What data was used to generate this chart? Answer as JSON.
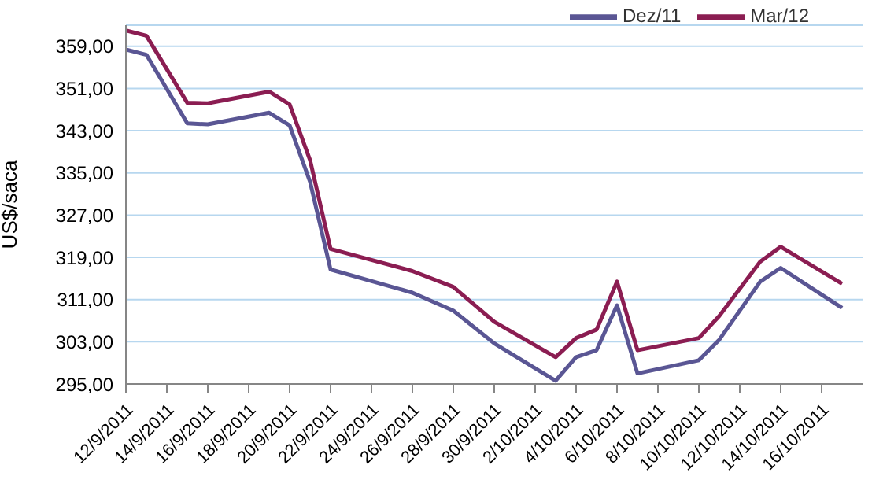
{
  "chart_data": {
    "type": "line",
    "ylabel": "US$/saca",
    "legend": "top right",
    "grid": "y",
    "marker": "none",
    "line_style": "solid",
    "x": [
      "2011-09-12",
      "2011-09-13",
      "2011-09-15",
      "2011-09-16",
      "2011-09-19",
      "2011-09-20",
      "2011-09-21",
      "2011-09-22",
      "2011-09-26",
      "2011-09-28",
      "2011-09-30",
      "2011-10-03",
      "2011-10-04",
      "2011-10-05",
      "2011-10-06",
      "2011-10-07",
      "2011-10-10",
      "2011-10-11",
      "2011-10-13",
      "2011-10-14",
      "2011-10-17"
    ],
    "series": [
      {
        "name": "Dez/11",
        "color": "#5a5694",
        "values": [
          358.4,
          357.4,
          344.4,
          344.2,
          346.4,
          344.0,
          333.3,
          316.7,
          312.3,
          308.9,
          302.7,
          295.6,
          300.1,
          301.4,
          309.9,
          297.0,
          299.5,
          303.4,
          314.4,
          317.0,
          309.4
        ]
      },
      {
        "name": "Mar/12",
        "color": "#8b1d52",
        "values": [
          362.0,
          361.0,
          348.3,
          348.2,
          350.4,
          348.0,
          337.4,
          320.6,
          316.4,
          313.4,
          306.8,
          300.1,
          303.7,
          305.3,
          314.4,
          301.4,
          303.7,
          307.9,
          318.2,
          321.0,
          314.0
        ]
      }
    ],
    "ylim": [
      295,
      363
    ],
    "yticks": [
      {
        "value": 295,
        "label": "295,00"
      },
      {
        "value": 303,
        "label": "303,00"
      },
      {
        "value": 311,
        "label": "311,00"
      },
      {
        "value": 319,
        "label": "319,00"
      },
      {
        "value": 327,
        "label": "327,00"
      },
      {
        "value": 335,
        "label": "335,00"
      },
      {
        "value": 343,
        "label": "343,00"
      },
      {
        "value": 351,
        "label": "351,00"
      },
      {
        "value": 359,
        "label": "359,00"
      }
    ],
    "xlim": [
      "2011-09-12",
      "2011-10-18"
    ],
    "xticks": [
      {
        "value": "2011-09-12",
        "label": "12/9/2011"
      },
      {
        "value": "2011-09-14",
        "label": "14/9/2011"
      },
      {
        "value": "2011-09-16",
        "label": "16/9/2011"
      },
      {
        "value": "2011-09-18",
        "label": "18/9/2011"
      },
      {
        "value": "2011-09-20",
        "label": "20/9/2011"
      },
      {
        "value": "2011-09-22",
        "label": "22/9/2011"
      },
      {
        "value": "2011-09-24",
        "label": "24/9/2011"
      },
      {
        "value": "2011-09-26",
        "label": "26/9/2011"
      },
      {
        "value": "2011-09-28",
        "label": "28/9/2011"
      },
      {
        "value": "2011-09-30",
        "label": "30/9/2011"
      },
      {
        "value": "2011-10-02",
        "label": "2/10/2011"
      },
      {
        "value": "2011-10-04",
        "label": "4/10/2011"
      },
      {
        "value": "2011-10-06",
        "label": "6/10/2011"
      },
      {
        "value": "2011-10-08",
        "label": "8/10/2011"
      },
      {
        "value": "2011-10-10",
        "label": "10/10/2011"
      },
      {
        "value": "2011-10-12",
        "label": "12/10/2011"
      },
      {
        "value": "2011-10-14",
        "label": "14/10/2011"
      },
      {
        "value": "2011-10-16",
        "label": "16/10/2011"
      }
    ]
  }
}
